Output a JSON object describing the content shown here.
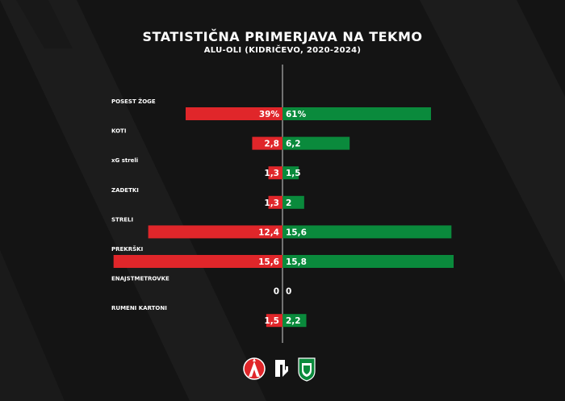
{
  "header": {
    "title": "STATISTIČNA PRIMERJAVA NA TEKMO",
    "subtitle": "ALU-OLI (KIDRIČEVO, 2020-2024)"
  },
  "colors": {
    "background": "#141414",
    "stripe": "#1f1f1f",
    "home": "#e0262a",
    "away": "#0a8a3c",
    "divider": "#cfcfcf"
  },
  "chart_data": {
    "type": "bar",
    "orientation": "horizontal-diverging",
    "categories": [
      "POSEST ŽOGE",
      "KOTI",
      "xG streli",
      "ZADETKI",
      "STRELI",
      "PREKRŠKI",
      "ENAJSTMETROVKE",
      "RUMENI KARTONI"
    ],
    "series": [
      {
        "values": [
          39,
          2.8,
          1.3,
          1.3,
          12.4,
          15.6,
          0,
          1.5
        ],
        "labels": [
          "39%",
          "2,8",
          "1,3",
          "1,3",
          "12,4",
          "15,6",
          "0",
          "1,5"
        ]
      },
      {
        "values": [
          61,
          6.2,
          1.5,
          2,
          15.6,
          15.8,
          0,
          2.2
        ],
        "labels": [
          "61%",
          "6,2",
          "1,5",
          "2",
          "15,6",
          "15,8",
          "0",
          "2,2"
        ]
      }
    ]
  },
  "logos": {
    "home": "aluminij-logo",
    "middle": "oc-logo",
    "away": "olimpija-logo"
  }
}
